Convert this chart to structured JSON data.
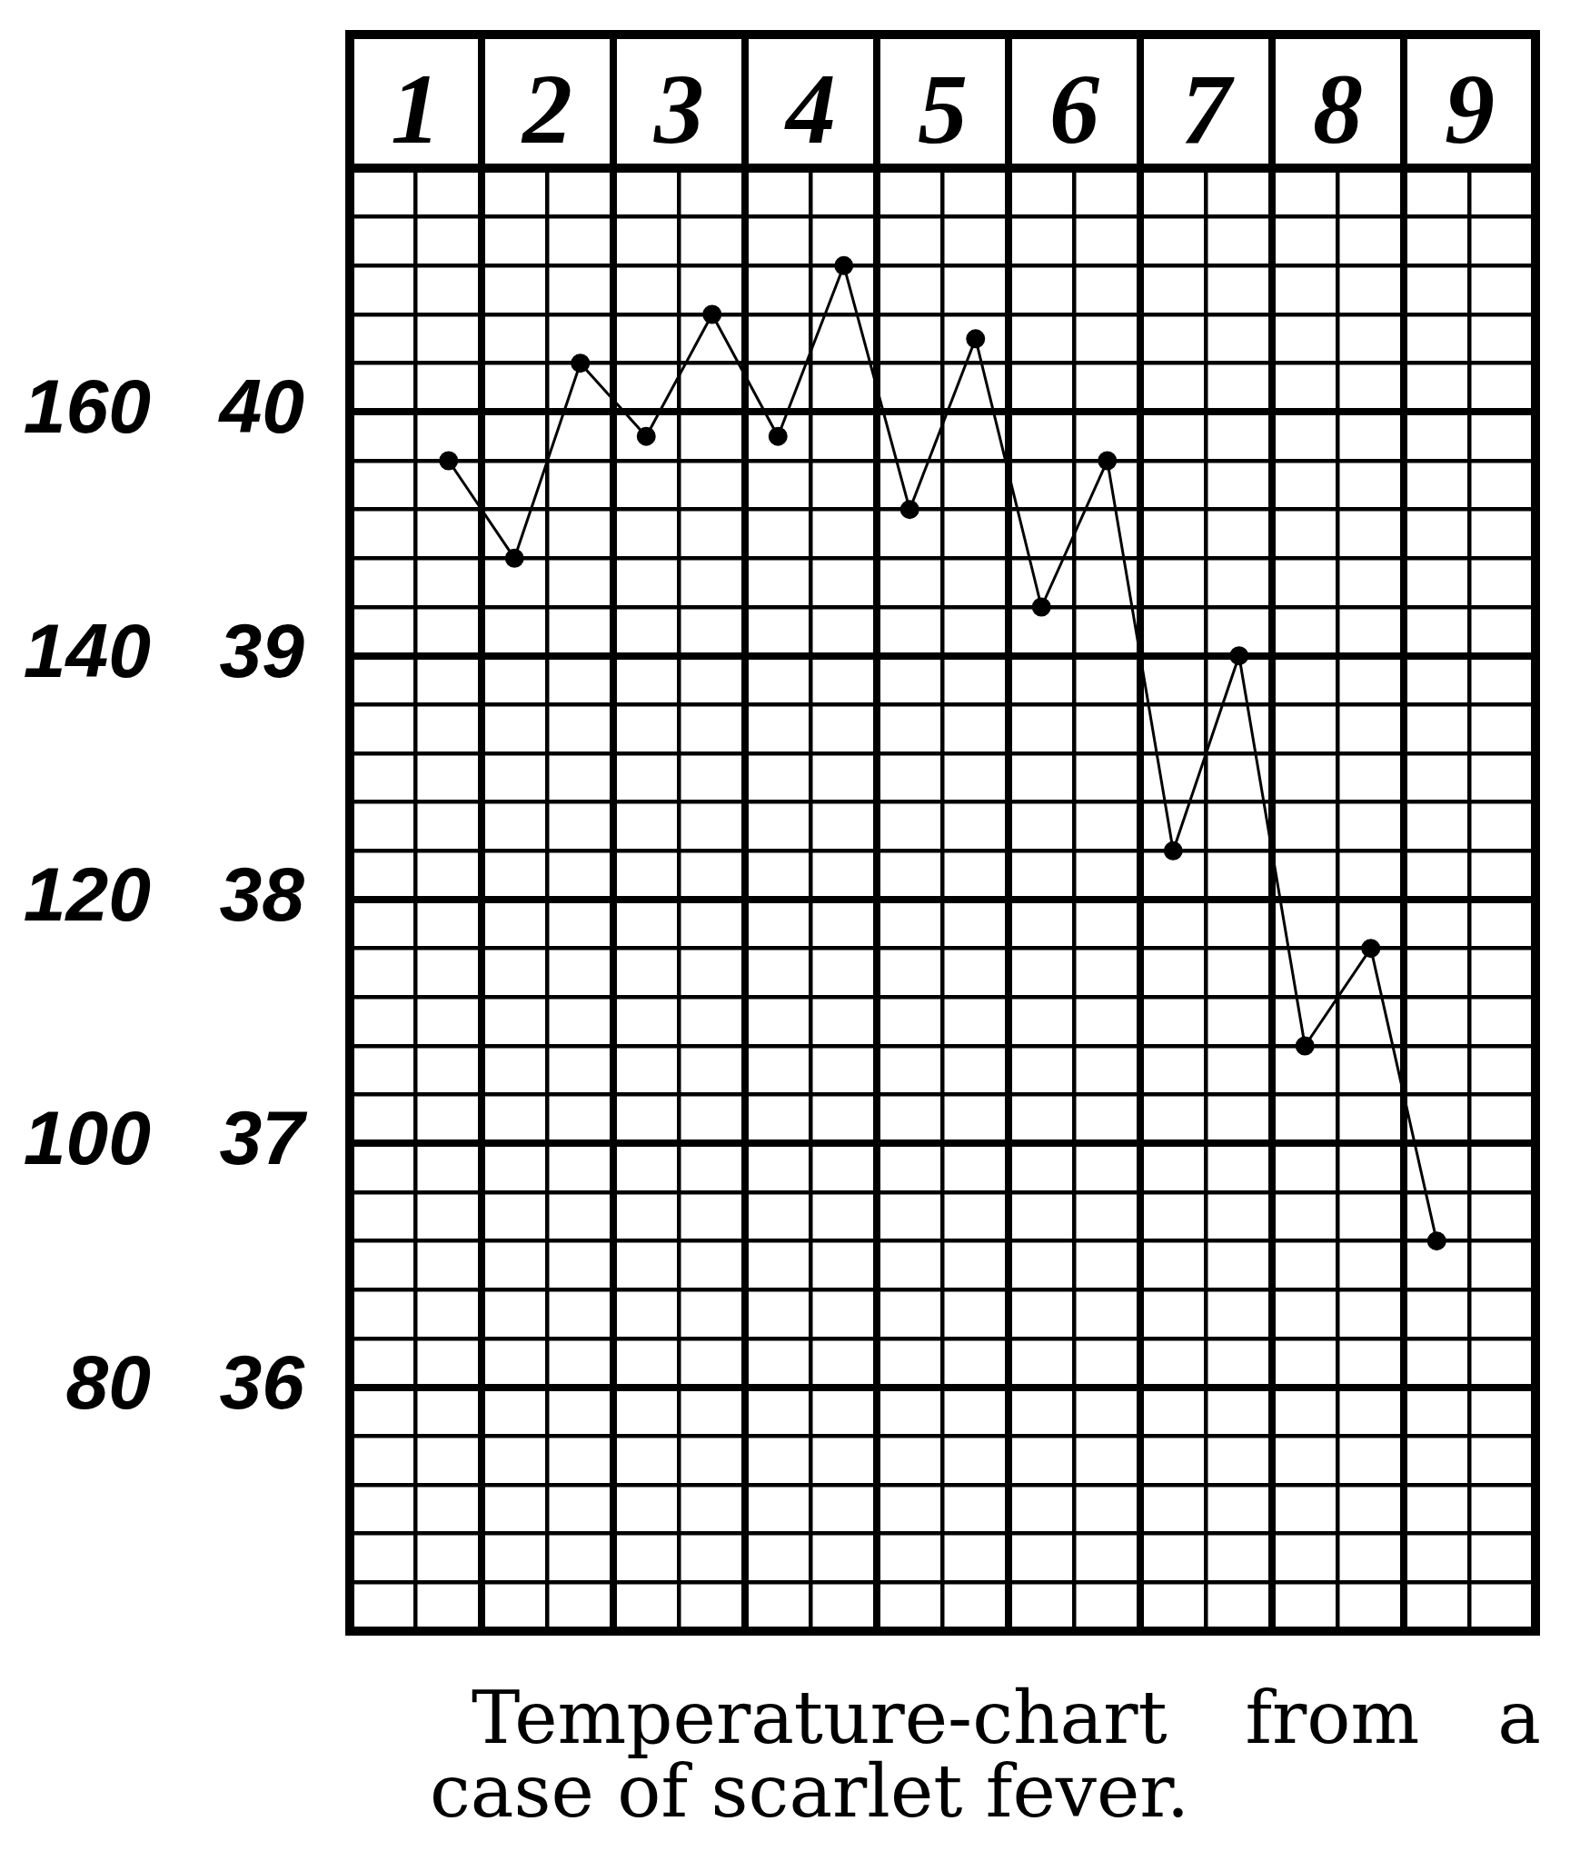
{
  "chart_data": {
    "type": "line",
    "annotations": [
      "Temperature-chart from a case of scarlet fever."
    ],
    "x": [
      1.25,
      1.75,
      2.25,
      2.75,
      3.25,
      3.75,
      4.25,
      4.75,
      5.25,
      5.75,
      6.25,
      6.75,
      7.25,
      7.75,
      8.25,
      8.75
    ],
    "values": [
      39.8,
      39.4,
      40.2,
      39.9,
      40.4,
      39.9,
      40.6,
      39.6,
      40.3,
      39.2,
      39.8,
      38.2,
      39.0,
      37.4,
      37.8,
      36.6
    ],
    "color": "#000000",
    "marker": "circle",
    "line_style": "solid",
    "grid": true,
    "xlim": [
      0.5,
      9.5
    ],
    "xticks": [
      {
        "value": 0.5,
        "label": null
      },
      1,
      {
        "value": 1.5,
        "label": null
      },
      2,
      {
        "value": 2.5,
        "label": null
      },
      3,
      {
        "value": 3.5,
        "label": null
      },
      4,
      {
        "value": 4.5,
        "label": null
      },
      5,
      {
        "value": 5.5,
        "label": null
      },
      6,
      {
        "value": 6.5,
        "label": null
      },
      7,
      {
        "value": 7.5,
        "label": null
      },
      8,
      {
        "value": 8.5,
        "label": null
      },
      9,
      {
        "value": 9.5,
        "label": null
      }
    ],
    "ylim": [
      35,
      41
    ],
    "yticks": [
      {
        "value": 35,
        "label": null
      },
      {
        "value": 35.2,
        "label": null
      },
      {
        "value": 35.4,
        "label": null
      },
      {
        "value": 35.6,
        "label": null
      },
      {
        "value": 35.8,
        "label": null
      },
      36,
      {
        "value": 36.2,
        "label": null
      },
      {
        "value": 36.4,
        "label": null
      },
      {
        "value": 36.6,
        "label": null
      },
      {
        "value": 36.8,
        "label": null
      },
      37,
      {
        "value": 37.2,
        "label": null
      },
      {
        "value": 37.4,
        "label": null
      },
      {
        "value": 37.6,
        "label": null
      },
      {
        "value": 37.8,
        "label": null
      },
      38,
      {
        "value": 38.2,
        "label": null
      },
      {
        "value": 38.4,
        "label": null
      },
      {
        "value": 38.6,
        "label": null
      },
      {
        "value": 38.8,
        "label": null
      },
      39,
      {
        "value": 39.2,
        "label": null
      },
      {
        "value": 39.4,
        "label": null
      },
      {
        "value": 39.6,
        "label": null
      },
      {
        "value": 39.8,
        "label": null
      },
      40,
      {
        "value": 40.2,
        "label": null
      },
      {
        "value": 40.4,
        "label": null
      },
      {
        "value": 40.6,
        "label": null
      },
      {
        "value": 40.8,
        "label": null
      },
      {
        "value": 41,
        "label": null
      }
    ],
    "y2lim": [
      60,
      180
    ],
    "y2ticks": [
      80,
      100,
      120,
      140,
      160
    ]
  }
}
